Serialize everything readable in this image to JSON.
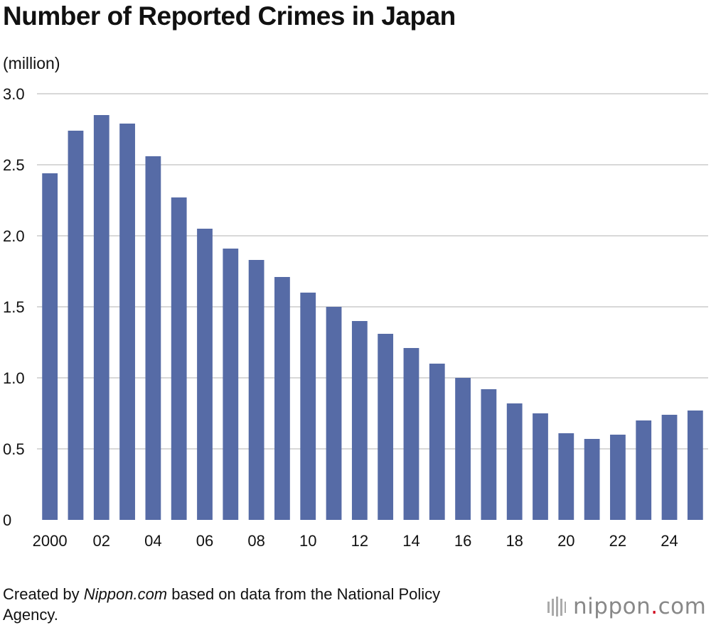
{
  "chart_data": {
    "type": "bar",
    "title": "Number of Reported Crimes in Japan",
    "unit_label": "(million)",
    "ylim": [
      0,
      3.0
    ],
    "yticks": [
      0,
      0.5,
      1.0,
      1.5,
      2.0,
      2.5,
      3.0
    ],
    "ytick_labels": [
      "0",
      "0.5",
      "1.0",
      "1.5",
      "2.0",
      "2.5",
      "3.0"
    ],
    "x": [
      2000,
      2001,
      2002,
      2003,
      2004,
      2005,
      2006,
      2007,
      2008,
      2009,
      2010,
      2011,
      2012,
      2013,
      2014,
      2015,
      2016,
      2017,
      2018,
      2019,
      2020,
      2021,
      2022,
      2023,
      2024,
      2025
    ],
    "xtick_labels": [
      "2000",
      "",
      "02",
      "",
      "04",
      "",
      "06",
      "",
      "08",
      "",
      "10",
      "",
      "12",
      "",
      "14",
      "",
      "16",
      "",
      "18",
      "",
      "20",
      "",
      "22",
      "",
      "24",
      ""
    ],
    "values": [
      2.44,
      2.74,
      2.85,
      2.79,
      2.56,
      2.27,
      2.05,
      1.91,
      1.83,
      1.71,
      1.6,
      1.5,
      1.4,
      1.31,
      1.21,
      1.1,
      1.0,
      0.92,
      0.82,
      0.75,
      0.61,
      0.57,
      0.6,
      0.7,
      0.74,
      0.77
    ],
    "bar_color": "#566ba6",
    "grid": true,
    "grid_color": "#cccccc"
  },
  "source": {
    "prefix": "Created by ",
    "site": "Nippon.com",
    "suffix": " based on data from the National Policy Agency."
  },
  "brand": {
    "name_left": "nippon",
    "dot": ".",
    "name_right": "com",
    "logo_icon": "bars-icon"
  }
}
